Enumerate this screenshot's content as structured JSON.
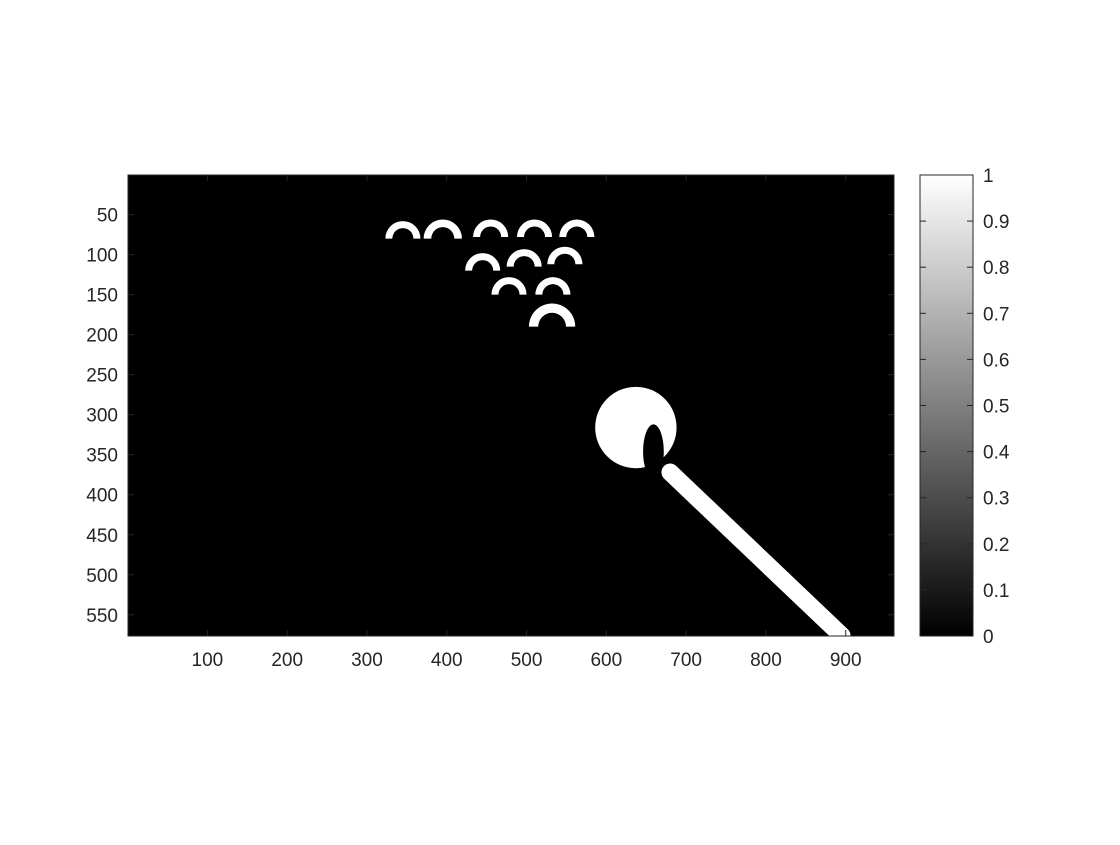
{
  "chart_data": {
    "type": "heatmap",
    "title": "",
    "xlabel": "",
    "ylabel": "",
    "xlim": [
      0.5,
      960.5
    ],
    "ylim": [
      0.5,
      576.5
    ],
    "y_reversed": true,
    "x_ticks": [
      100,
      200,
      300,
      400,
      500,
      600,
      700,
      800,
      900
    ],
    "y_ticks": [
      50,
      100,
      150,
      200,
      250,
      300,
      350,
      400,
      450,
      500,
      550
    ],
    "colormap": "gray",
    "background_color": "#000000",
    "foreground_color": "#ffffff",
    "grid": false,
    "colorbar": {
      "range": [
        0,
        1
      ],
      "ticks": [
        0,
        0.1,
        0.2,
        0.3,
        0.4,
        0.5,
        0.6,
        0.7,
        0.8,
        0.9,
        1
      ]
    },
    "image_description_regions": {
      "cue_ball": {
        "cx": 637,
        "cy": 316,
        "r": 51,
        "value": 1
      },
      "racked_ball_highlights": [
        {
          "cx": 345,
          "cy": 80,
          "r": 22
        },
        {
          "cx": 395,
          "cy": 80,
          "r": 24
        },
        {
          "cx": 455,
          "cy": 78,
          "r": 22
        },
        {
          "cx": 510,
          "cy": 78,
          "r": 22
        },
        {
          "cx": 563,
          "cy": 78,
          "r": 22
        },
        {
          "cx": 445,
          "cy": 120,
          "r": 22
        },
        {
          "cx": 497,
          "cy": 115,
          "r": 22
        },
        {
          "cx": 548,
          "cy": 112,
          "r": 22
        },
        {
          "cx": 478,
          "cy": 150,
          "r": 22
        },
        {
          "cx": 533,
          "cy": 150,
          "r": 22
        },
        {
          "cx": 532,
          "cy": 190,
          "r": 29
        }
      ],
      "cue_stick": {
        "x1": 680,
        "y1": 372,
        "x2": 895,
        "y2": 576,
        "width": 22
      }
    }
  }
}
